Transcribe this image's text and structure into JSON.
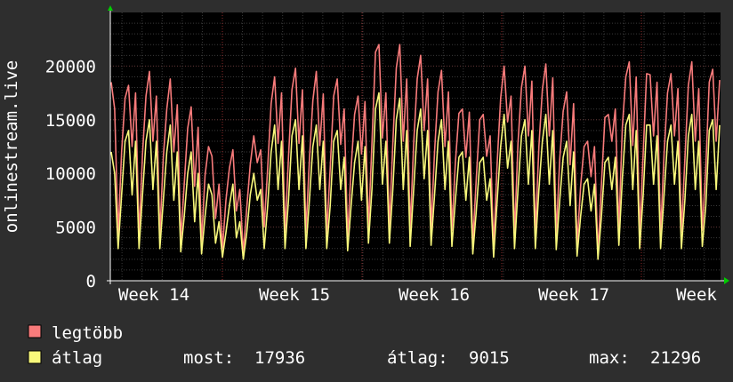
{
  "chart_data": {
    "type": "line",
    "ylabel": "onlinestream.live",
    "ylim": [
      0,
      25000
    ],
    "y_ticks": [
      0,
      5000,
      10000,
      15000,
      20000
    ],
    "x_ticks": [
      "Week 14",
      "Week 15",
      "Week 16",
      "Week 17",
      "Week"
    ],
    "grid": true,
    "colors": {
      "background": "#2e2e2e",
      "plot_background": "#000000",
      "grid_minor": "#3a3a3a",
      "grid_major_x": "#8a2a2a",
      "axis": "#ffffff",
      "arrow": "#00cc00",
      "max_series": "#f87b7b",
      "avg_series": "#f8f87b"
    },
    "series": [
      {
        "name": "legtöbb",
        "color": "#f87b7b",
        "values": [
          18500,
          16000,
          4300,
          12000,
          17000,
          18200,
          12500,
          17500,
          4200,
          11800,
          17200,
          19500,
          13000,
          17200,
          4300,
          11500,
          16000,
          18800,
          12000,
          16400,
          3800,
          9000,
          14200,
          16200,
          8800,
          14300,
          3600,
          9800,
          12500,
          11600,
          5800,
          9000,
          3000,
          7500,
          10500,
          12200,
          6500,
          8500,
          2600,
          6800,
          10800,
          13500,
          11000,
          12200,
          5000,
          10500,
          16500,
          19000,
          12800,
          17500,
          4500,
          11500,
          17800,
          19800,
          12800,
          17800,
          4500,
          11200,
          16800,
          19500,
          12600,
          17400,
          4400,
          10500,
          17200,
          18800,
          12700,
          16000,
          4100,
          10500,
          15500,
          17200,
          11800,
          16700,
          4900,
          12800,
          21300,
          22000,
          13300,
          17500,
          5000,
          12800,
          19800,
          22000,
          13000,
          18800,
          4700,
          12700,
          18800,
          21000,
          14000,
          18800,
          4800,
          12000,
          17600,
          19600,
          12500,
          17600,
          4700,
          11000,
          15600,
          16000,
          11500,
          15700,
          3500,
          9500,
          15000,
          15500,
          11600,
          13500,
          3200,
          11000,
          17000,
          20000,
          14800,
          17200,
          4300,
          12800,
          18000,
          20000,
          13500,
          18600,
          4400,
          12500,
          17800,
          20200,
          13500,
          18900,
          4200,
          11300,
          15800,
          17600,
          10800,
          16500,
          3300,
          8800,
          12500,
          13000,
          9700,
          12500,
          2600,
          9000,
          15200,
          15500,
          13000,
          16000,
          4800,
          14300,
          19000,
          20400,
          12600,
          19000,
          4400,
          11800,
          19300,
          19200,
          13500,
          18500,
          4300,
          11800,
          17500,
          19300,
          13500,
          17900,
          4500,
          11300,
          18200,
          20400,
          13000,
          17900,
          4700,
          10500,
          18500,
          19700,
          13000,
          18700
        ],
        "smoothness": "peaks"
      },
      {
        "name": "átlag",
        "color": "#f8f87b",
        "values": [
          12000,
          10000,
          3000,
          8000,
          13000,
          14000,
          8000,
          13000,
          3000,
          8000,
          13000,
          15000,
          8500,
          13000,
          3000,
          7500,
          12000,
          14500,
          7500,
          12000,
          2700,
          6000,
          10000,
          12000,
          5500,
          10000,
          2500,
          6000,
          9000,
          8000,
          3500,
          5500,
          2200,
          4500,
          7000,
          9000,
          4000,
          5500,
          2000,
          4500,
          8000,
          10000,
          7500,
          8500,
          3000,
          7000,
          12000,
          14500,
          8500,
          13000,
          3000,
          7500,
          13500,
          15000,
          8500,
          13500,
          3000,
          7500,
          12500,
          14500,
          8500,
          13000,
          3000,
          7000,
          13000,
          14000,
          8500,
          11500,
          2800,
          7000,
          11000,
          13000,
          7500,
          12500,
          3500,
          8500,
          16000,
          17500,
          9000,
          13000,
          3500,
          8500,
          15000,
          17000,
          8500,
          14000,
          3200,
          8500,
          14000,
          16000,
          9500,
          14000,
          3300,
          8000,
          13000,
          15000,
          8500,
          13000,
          3200,
          7500,
          11500,
          12000,
          7500,
          11500,
          2500,
          6500,
          11000,
          11500,
          7500,
          9500,
          2200,
          7500,
          12500,
          15500,
          10500,
          13000,
          3000,
          8500,
          13500,
          15000,
          9000,
          14000,
          3000,
          8500,
          13000,
          15500,
          9000,
          14000,
          2900,
          7500,
          11500,
          13000,
          7000,
          12000,
          2300,
          6000,
          9000,
          9500,
          6500,
          9000,
          2000,
          6000,
          11000,
          11500,
          8500,
          11500,
          3300,
          9500,
          14500,
          15500,
          8500,
          14000,
          3000,
          8000,
          14500,
          14500,
          9000,
          13500,
          3000,
          8000,
          13000,
          14500,
          9000,
          13000,
          3000,
          7500,
          13500,
          15500,
          8500,
          13000,
          3200,
          7000,
          14000,
          15000,
          8500,
          14500
        ]
      }
    ],
    "legend": {
      "placement": "bottom-left",
      "stats": [
        {
          "label": "most:",
          "value": "17936"
        },
        {
          "label": "átlag:",
          "value": "9015"
        },
        {
          "label": "max:",
          "value": "21296"
        }
      ]
    }
  }
}
